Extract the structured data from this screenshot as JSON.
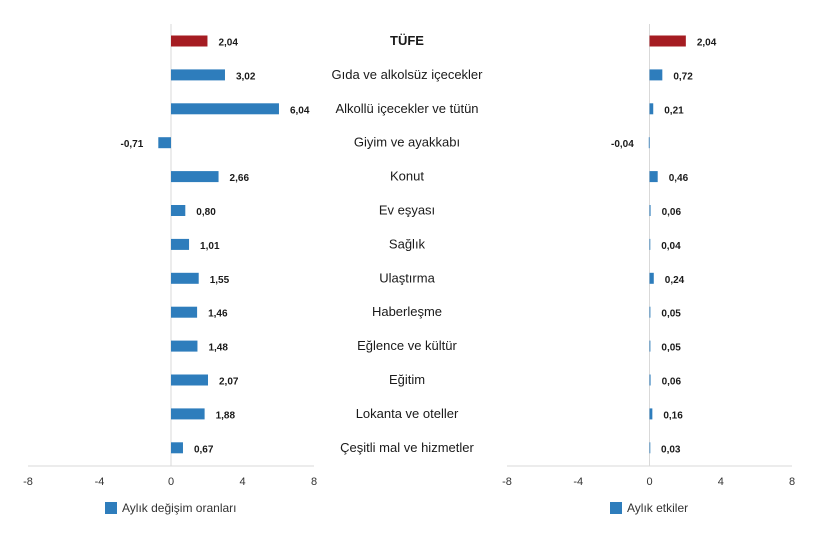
{
  "colors": {
    "bar": "#2e7dbc",
    "highlight": "#a51c22",
    "axis": "#d9d9d9",
    "text": "#1a1a1a"
  },
  "categories": [
    "TÜFE",
    "Gıda ve alkolsüz içecekler",
    "Alkollü içecekler ve tütün",
    "Giyim ve ayakkabı",
    "Konut",
    "Ev eşyası",
    "Sağlık",
    "Ulaştırma",
    "Haberleşme",
    "Eğlence ve kültür",
    "Eğitim",
    "Lokanta ve oteller",
    "Çeşitli mal ve hizmetler"
  ],
  "chart_data": [
    {
      "type": "bar",
      "orientation": "horizontal",
      "categories": [
        "TÜFE",
        "Gıda ve alkolsüz içecekler",
        "Alkollü içecekler ve tütün",
        "Giyim ve ayakkabı",
        "Konut",
        "Ev eşyası",
        "Sağlık",
        "Ulaştırma",
        "Haberleşme",
        "Eğlence ve kültür",
        "Eğitim",
        "Lokanta ve oteller",
        "Çeşitli mal ve hizmetler"
      ],
      "series": [
        {
          "name": "Aylık değişim oranları",
          "values": [
            2.04,
            3.02,
            6.04,
            -0.71,
            2.66,
            0.8,
            1.01,
            1.55,
            1.46,
            1.48,
            2.07,
            1.88,
            0.67
          ],
          "labels": [
            "2,04",
            "3,02",
            "6,04",
            "-0,71",
            "2,66",
            "0,80",
            "1,01",
            "1,55",
            "1,46",
            "1,48",
            "2,07",
            "1,88",
            "0,67"
          ]
        }
      ],
      "xlim": [
        -8,
        8
      ],
      "xticks": [
        "-8",
        "-4",
        "0",
        "4",
        "8"
      ],
      "legend": "Aylık değişim oranları",
      "legend_position": "bottom",
      "grid": false
    },
    {
      "type": "bar",
      "orientation": "horizontal",
      "categories": [
        "TÜFE",
        "Gıda ve alkolsüz içecekler",
        "Alkollü içecekler ve tütün",
        "Giyim ve ayakkabı",
        "Konut",
        "Ev eşyası",
        "Sağlık",
        "Ulaştırma",
        "Haberleşme",
        "Eğlence ve kültür",
        "Eğitim",
        "Lokanta ve oteller",
        "Çeşitli mal ve hizmetler"
      ],
      "series": [
        {
          "name": "Aylık etkiler",
          "values": [
            2.04,
            0.72,
            0.21,
            -0.04,
            0.46,
            0.06,
            0.04,
            0.24,
            0.05,
            0.05,
            0.06,
            0.16,
            0.03
          ],
          "labels": [
            "2,04",
            "0,72",
            "0,21",
            "-0,04",
            "0,46",
            "0,06",
            "0,04",
            "0,24",
            "0,05",
            "0,05",
            "0,06",
            "0,16",
            "0,03"
          ]
        }
      ],
      "xlim": [
        -8,
        8
      ],
      "xticks": [
        "-8",
        "-4",
        "0",
        "4",
        "8"
      ],
      "legend": "Aylık etkiler",
      "legend_position": "bottom",
      "grid": false
    }
  ]
}
